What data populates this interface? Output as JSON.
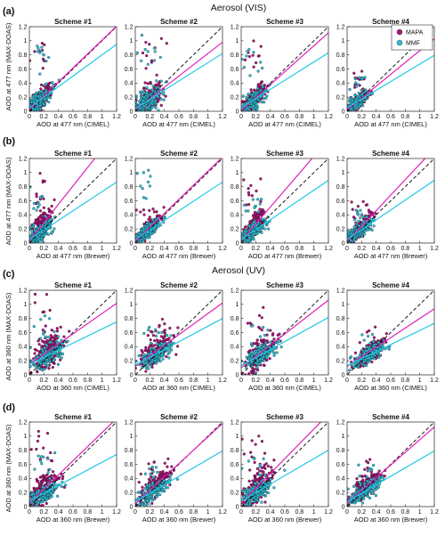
{
  "colors": {
    "mapa": "#b0127a",
    "mapa_line": "#e020b8",
    "mmf": "#30c0d8",
    "mmf_line": "#20c8e8",
    "one_to_one": "#000000"
  },
  "figure": {
    "section_titles": [
      "Aerosol (VIS)",
      "Aerosol (UV)"
    ],
    "rows": [
      {
        "letter": "(a)",
        "ylabel": "AOD at 477 nm (MAX-DOAS)",
        "xlabel": "AOD at 477 nm (CIMEL)"
      },
      {
        "letter": "(b)",
        "ylabel": "AOD at 477 nm (MAX-DOAS)",
        "xlabel": "AOD at 477 nm (Brewer)"
      },
      {
        "letter": "(c)",
        "ylabel": "AOD at 360 nm (MAX-DOAS)",
        "xlabel": "AOD at 360 nm (CIMEL)"
      },
      {
        "letter": "(d)",
        "ylabel": "AOD at 360 nm (MAX-DOAS)",
        "xlabel": "AOD at 360 nm (Brewer)"
      }
    ],
    "schemes": [
      "Scheme #1",
      "Scheme #2",
      "Scheme #3",
      "Scheme #4"
    ],
    "legend": [
      "MAPA",
      "MMF"
    ],
    "ticks": [
      "0",
      "0.2",
      "0.4",
      "0.6",
      "0.8",
      "1",
      "1.2"
    ]
  },
  "chart_data": {
    "type": "scatter",
    "layout": "4x4 small multiples",
    "xlim": [
      0,
      1.2
    ],
    "ylim": [
      0,
      1.2
    ],
    "reference_line": "1:1 dashed",
    "series_names": [
      "MAPA",
      "MMF"
    ],
    "panels": [
      {
        "row": "(a)",
        "scheme": "Scheme #1",
        "MAPA_fit": [
          0.02,
          0.99
        ],
        "MMF_fit": [
          0.05,
          0.75
        ],
        "MAPA_cloud": {
          "x_mean": 0.15,
          "x_sd": 0.08,
          "y_spread": 0.12,
          "outlier_ymax": 1.1
        },
        "MMF_cloud": {
          "x_mean": 0.15,
          "x_sd": 0.08,
          "y_spread": 0.1,
          "outlier_ymax": 0.95
        }
      },
      {
        "row": "(a)",
        "scheme": "Scheme #2",
        "MAPA_fit": [
          0.02,
          0.8
        ],
        "MMF_fit": [
          0.04,
          0.65
        ],
        "MAPA_cloud": {
          "x_mean": 0.18,
          "x_sd": 0.1,
          "y_spread": 0.14,
          "outlier_ymax": 1.1
        },
        "MMF_cloud": {
          "x_mean": 0.18,
          "x_sd": 0.1,
          "y_spread": 0.14,
          "outlier_ymax": 1.15
        }
      },
      {
        "row": "(a)",
        "scheme": "Scheme #3",
        "MAPA_fit": [
          0.01,
          0.92
        ],
        "MMF_fit": [
          0.05,
          0.65
        ],
        "MAPA_cloud": {
          "x_mean": 0.16,
          "x_sd": 0.09,
          "y_spread": 0.12,
          "outlier_ymax": 1.0
        },
        "MMF_cloud": {
          "x_mean": 0.16,
          "x_sd": 0.09,
          "y_spread": 0.1,
          "outlier_ymax": 0.9
        }
      },
      {
        "row": "(a)",
        "scheme": "Scheme #4",
        "MAPA_fit": [
          0.02,
          0.84
        ],
        "MMF_fit": [
          0.05,
          0.62
        ],
        "MAPA_cloud": {
          "x_mean": 0.14,
          "x_sd": 0.07,
          "y_spread": 0.08,
          "outlier_ymax": 0.6
        },
        "MMF_cloud": {
          "x_mean": 0.14,
          "x_sd": 0.07,
          "y_spread": 0.07,
          "outlier_ymax": 0.5
        }
      },
      {
        "row": "(b)",
        "scheme": "Scheme #1",
        "MAPA_fit": [
          0.03,
          1.3
        ],
        "MMF_fit": [
          0.05,
          0.68
        ],
        "MAPA_cloud": {
          "x_mean": 0.15,
          "x_sd": 0.08,
          "y_spread": 0.14,
          "outlier_ymax": 1.0
        },
        "MMF_cloud": {
          "x_mean": 0.15,
          "x_sd": 0.08,
          "y_spread": 0.1,
          "outlier_ymax": 0.8
        }
      },
      {
        "row": "(b)",
        "scheme": "Scheme #2",
        "MAPA_fit": [
          0.02,
          1.0
        ],
        "MMF_fit": [
          0.05,
          0.68
        ],
        "MAPA_cloud": {
          "x_mean": 0.17,
          "x_sd": 0.09,
          "y_spread": 0.09,
          "outlier_ymax": 0.5
        },
        "MMF_cloud": {
          "x_mean": 0.17,
          "x_sd": 0.09,
          "y_spread": 0.08,
          "outlier_ymax": 1.15
        }
      },
      {
        "row": "(b)",
        "scheme": "Scheme #3",
        "MAPA_fit": [
          0.03,
          1.2
        ],
        "MMF_fit": [
          0.05,
          0.7
        ],
        "MAPA_cloud": {
          "x_mean": 0.16,
          "x_sd": 0.09,
          "y_spread": 0.12,
          "outlier_ymax": 0.95
        },
        "MMF_cloud": {
          "x_mean": 0.16,
          "x_sd": 0.09,
          "y_spread": 0.09,
          "outlier_ymax": 0.7
        }
      },
      {
        "row": "(b)",
        "scheme": "Scheme #4",
        "MAPA_fit": [
          0.02,
          1.1
        ],
        "MMF_fit": [
          0.05,
          0.7
        ],
        "MAPA_cloud": {
          "x_mean": 0.16,
          "x_sd": 0.09,
          "y_spread": 0.09,
          "outlier_ymax": 0.6
        },
        "MMF_cloud": {
          "x_mean": 0.16,
          "x_sd": 0.09,
          "y_spread": 0.08,
          "outlier_ymax": 0.5
        }
      },
      {
        "row": "(c)",
        "scheme": "Scheme #1",
        "MAPA_fit": [
          0.15,
          0.72
        ],
        "MMF_fit": [
          0.15,
          0.5
        ],
        "MAPA_cloud": {
          "x_mean": 0.25,
          "x_sd": 0.1,
          "y_spread": 0.2,
          "outlier_ymax": 1.15
        },
        "MMF_cloud": {
          "x_mean": 0.25,
          "x_sd": 0.1,
          "y_spread": 0.12,
          "outlier_ymax": 0.9
        }
      },
      {
        "row": "(c)",
        "scheme": "Scheme #2",
        "MAPA_fit": [
          0.12,
          0.75
        ],
        "MMF_fit": [
          0.14,
          0.55
        ],
        "MAPA_cloud": {
          "x_mean": 0.28,
          "x_sd": 0.11,
          "y_spread": 0.14,
          "outlier_ymax": 0.8
        },
        "MMF_cloud": {
          "x_mean": 0.28,
          "x_sd": 0.11,
          "y_spread": 0.1,
          "outlier_ymax": 0.7
        }
      },
      {
        "row": "(c)",
        "scheme": "Scheme #3",
        "MAPA_fit": [
          0.1,
          0.8
        ],
        "MMF_fit": [
          0.13,
          0.57
        ],
        "MAPA_cloud": {
          "x_mean": 0.26,
          "x_sd": 0.1,
          "y_spread": 0.16,
          "outlier_ymax": 1.0
        },
        "MMF_cloud": {
          "x_mean": 0.26,
          "x_sd": 0.1,
          "y_spread": 0.1,
          "outlier_ymax": 0.7
        }
      },
      {
        "row": "(c)",
        "scheme": "Scheme #4",
        "MAPA_fit": [
          0.12,
          0.68
        ],
        "MMF_fit": [
          0.13,
          0.5
        ],
        "MAPA_cloud": {
          "x_mean": 0.3,
          "x_sd": 0.1,
          "y_spread": 0.12,
          "outlier_ymax": 0.7
        },
        "MMF_cloud": {
          "x_mean": 0.3,
          "x_sd": 0.1,
          "y_spread": 0.09,
          "outlier_ymax": 0.6
        }
      },
      {
        "row": "(d)",
        "scheme": "Scheme #1",
        "MAPA_fit": [
          0.05,
          1.0
        ],
        "MMF_fit": [
          0.08,
          0.55
        ],
        "MAPA_cloud": {
          "x_mean": 0.2,
          "x_sd": 0.1,
          "y_spread": 0.2,
          "outlier_ymax": 1.1
        },
        "MMF_cloud": {
          "x_mean": 0.2,
          "x_sd": 0.1,
          "y_spread": 0.12,
          "outlier_ymax": 0.8
        }
      },
      {
        "row": "(d)",
        "scheme": "Scheme #2",
        "MAPA_fit": [
          0.04,
          0.95
        ],
        "MMF_fit": [
          0.07,
          0.6
        ],
        "MAPA_cloud": {
          "x_mean": 0.25,
          "x_sd": 0.1,
          "y_spread": 0.12,
          "outlier_ymax": 0.7
        },
        "MMF_cloud": {
          "x_mean": 0.25,
          "x_sd": 0.1,
          "y_spread": 0.09,
          "outlier_ymax": 0.6
        }
      },
      {
        "row": "(d)",
        "scheme": "Scheme #3",
        "MAPA_fit": [
          0.05,
          1.05
        ],
        "MMF_fit": [
          0.08,
          0.6
        ],
        "MAPA_cloud": {
          "x_mean": 0.22,
          "x_sd": 0.1,
          "y_spread": 0.18,
          "outlier_ymax": 1.1
        },
        "MMF_cloud": {
          "x_mean": 0.22,
          "x_sd": 0.1,
          "y_spread": 0.1,
          "outlier_ymax": 0.7
        }
      },
      {
        "row": "(d)",
        "scheme": "Scheme #4",
        "MAPA_fit": [
          0.05,
          0.9
        ],
        "MMF_fit": [
          0.07,
          0.6
        ],
        "MAPA_cloud": {
          "x_mean": 0.25,
          "x_sd": 0.1,
          "y_spread": 0.12,
          "outlier_ymax": 0.7
        },
        "MMF_cloud": {
          "x_mean": 0.25,
          "x_sd": 0.1,
          "y_spread": 0.09,
          "outlier_ymax": 0.6
        }
      }
    ]
  }
}
